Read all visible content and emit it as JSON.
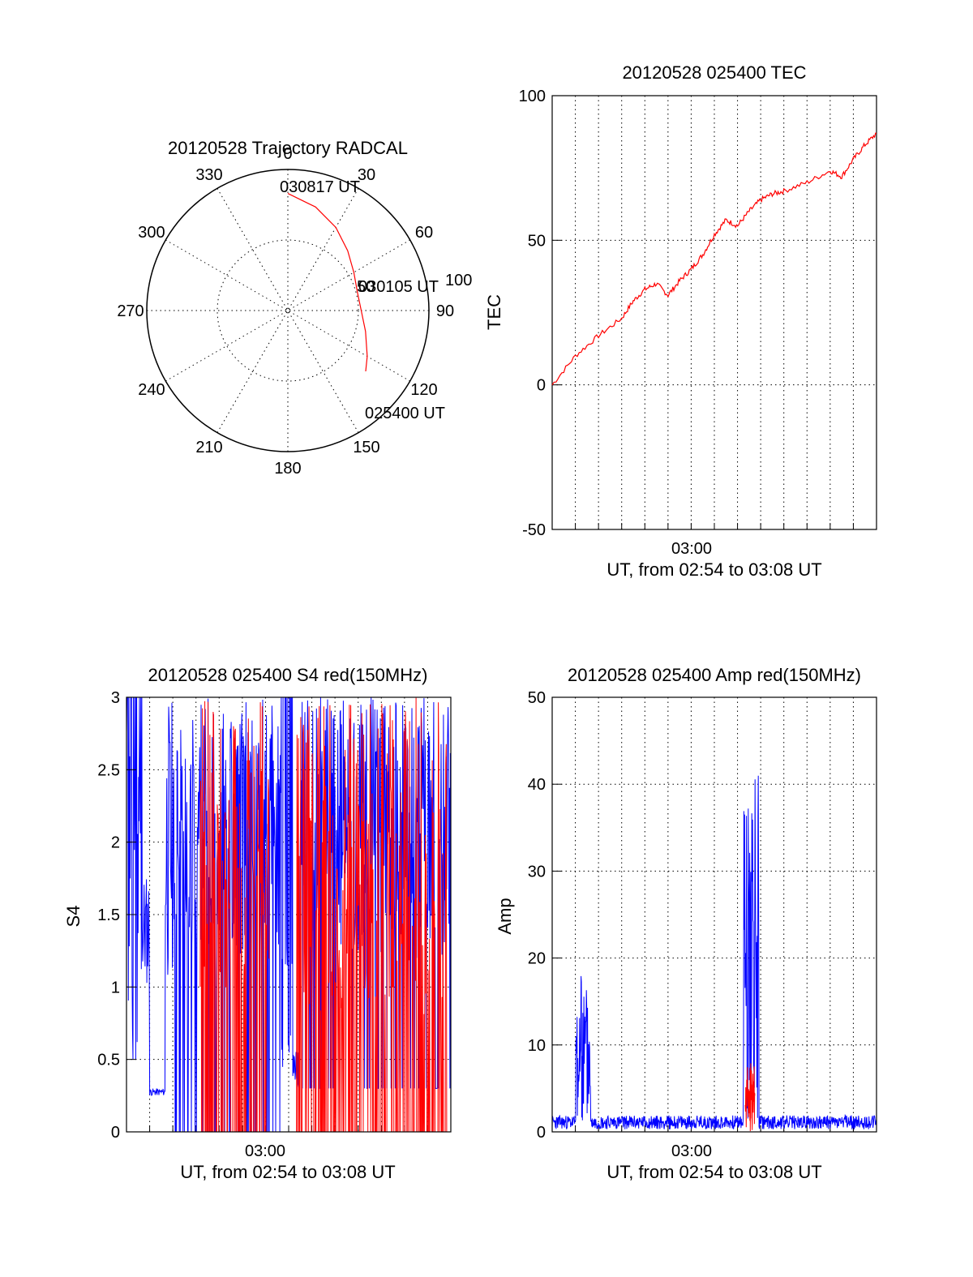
{
  "chart_data": [
    {
      "id": "trajectory",
      "type": "polar",
      "title": "20120528 Trajectory RADCAL",
      "angle_labels": [
        "0",
        "30",
        "60",
        "90",
        "120",
        "150",
        "180",
        "210",
        "240",
        "270",
        "300",
        "330"
      ],
      "radius_labels": [
        "50",
        "100"
      ],
      "rmax": 100,
      "track_color": "#ff0000",
      "track": [
        {
          "az": 0,
          "r": 83
        },
        {
          "az": 15,
          "r": 76
        },
        {
          "az": 30,
          "r": 68
        },
        {
          "az": 45,
          "r": 60
        },
        {
          "az": 60,
          "r": 54
        },
        {
          "az": 75,
          "r": 51
        },
        {
          "az": 90,
          "r": 52
        },
        {
          "az": 105,
          "r": 57
        },
        {
          "az": 120,
          "r": 65
        },
        {
          "az": 128,
          "r": 70
        }
      ],
      "annotations": [
        {
          "text": "030817 UT",
          "az": 0,
          "r": 83
        },
        {
          "text": "030105 UT",
          "az": 75,
          "r": 51
        },
        {
          "text": "025400 UT",
          "az": 128,
          "r": 70
        }
      ]
    },
    {
      "id": "tec",
      "type": "line",
      "title": "20120528 025400 TEC",
      "xlabel": "UT, from 02:54 to 03:08 UT",
      "ylabel": "TEC",
      "x_tick_label": "03:00",
      "xlim": [
        "02:54",
        "03:08"
      ],
      "ylim": [
        -50,
        100
      ],
      "yticks": [
        "-50",
        "0",
        "50",
        "100"
      ],
      "ytick_values": [
        -50,
        0,
        50,
        100
      ],
      "grid": true,
      "series": [
        {
          "color": "#ff0000",
          "x": [
            "02:54:00",
            "02:55:00",
            "02:56:00",
            "02:57:00",
            "02:57:30",
            "02:58:00",
            "02:58:30",
            "02:59:00",
            "02:59:30",
            "03:00:00",
            "03:00:30",
            "03:01:00",
            "03:01:30",
            "03:02:00",
            "03:02:30",
            "03:03:00",
            "03:03:30",
            "03:04:00",
            "03:05:00",
            "03:06:00",
            "03:06:30",
            "03:07:00",
            "03:07:30",
            "03:08:00"
          ],
          "y": [
            0,
            10,
            17,
            23,
            29,
            33,
            35,
            31,
            36,
            40,
            45,
            52,
            57,
            55,
            60,
            64,
            66,
            67,
            70,
            74,
            72,
            78,
            83,
            87
          ]
        }
      ]
    },
    {
      "id": "s4",
      "type": "line",
      "title": "20120528 025400 S4 red(150MHz)",
      "xlabel": "UT, from 02:54 to 03:08 UT",
      "ylabel": "S4",
      "x_tick_label": "03:00",
      "xlim": [
        "02:54",
        "03:08"
      ],
      "ylim": [
        0,
        3
      ],
      "yticks": [
        "0",
        "0.5",
        "1",
        "1.5",
        "2",
        "2.5",
        "3"
      ],
      "ytick_values": [
        0,
        0.5,
        1,
        1.5,
        2,
        2.5,
        3
      ],
      "grid": true,
      "series": [
        {
          "color": "#0000ff"
        },
        {
          "color": "#ff0000"
        }
      ]
    },
    {
      "id": "amp",
      "type": "line",
      "title": "20120528 025400 Amp red(150MHz)",
      "xlabel": "UT, from 02:54 to 03:08 UT",
      "ylabel": "Amp",
      "x_tick_label": "03:00",
      "xlim": [
        "02:54",
        "03:08"
      ],
      "ylim": [
        0,
        50
      ],
      "yticks": [
        "0",
        "10",
        "20",
        "30",
        "40",
        "50"
      ],
      "ytick_values": [
        0,
        10,
        20,
        30,
        40,
        50
      ],
      "grid": true,
      "series": [
        {
          "color": "#0000ff",
          "bursts": [
            {
              "from": "02:55:00",
              "to": "02:55:40",
              "peak": 18
            },
            {
              "from": "03:02:15",
              "to": "03:02:55",
              "peak": 42
            }
          ],
          "baseline": 1
        },
        {
          "color": "#ff0000",
          "bursts": [
            {
              "from": "03:02:20",
              "to": "03:02:45",
              "peak": 8
            }
          ]
        }
      ]
    }
  ]
}
